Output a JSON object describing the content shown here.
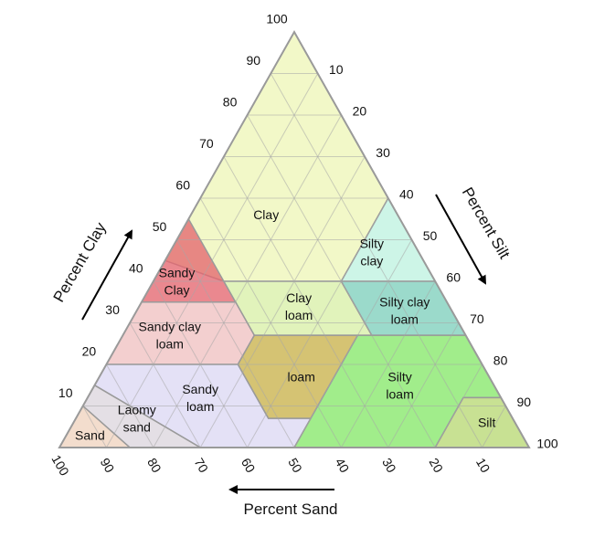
{
  "diagram": {
    "type": "soil-texture-triangle",
    "regions": [
      {
        "id": "clay",
        "label_lines": [
          "Clay"
        ],
        "color": "#eef6b8"
      },
      {
        "id": "silty-clay",
        "label_lines": [
          "Silty",
          "clay"
        ],
        "color": "#bff2e0"
      },
      {
        "id": "sandy-clay",
        "label_lines": [
          "Sandy",
          "Clay"
        ],
        "color": "#e4666f"
      },
      {
        "id": "clay-loam",
        "label_lines": [
          "Clay",
          "loam"
        ],
        "color": "#d9f0a8"
      },
      {
        "id": "silty-clay-loam",
        "label_lines": [
          "Silty clay",
          "loam"
        ],
        "color": "#7fcfbd"
      },
      {
        "id": "sandy-clay-loam",
        "label_lines": [
          "Sandy clay",
          "loam"
        ],
        "color": "#f0c2c2"
      },
      {
        "id": "loam",
        "label_lines": [
          "loam"
        ],
        "color": "#c9b24c"
      },
      {
        "id": "sandy-loam",
        "label_lines": [
          "Sandy",
          "loam"
        ],
        "color": "#ddd8f4"
      },
      {
        "id": "silty-loam",
        "label_lines": [
          "Silty",
          "loam"
        ],
        "color": "#86e86a"
      },
      {
        "id": "silt",
        "label_lines": [
          "Silt"
        ],
        "color": "#b8d874"
      },
      {
        "id": "loamy-sand",
        "label_lines": [
          "Laomy",
          "sand"
        ],
        "color": "#dcd6de"
      },
      {
        "id": "sand",
        "label_lines": [
          "Sand"
        ],
        "color": "#f0d4bf"
      }
    ],
    "axes": {
      "clay": {
        "title": "Percent Clay",
        "ticks": [
          "10",
          "20",
          "30",
          "40",
          "50",
          "60",
          "70",
          "80",
          "90",
          "100"
        ]
      },
      "silt": {
        "title": "Percent Silt",
        "ticks": [
          "10",
          "20",
          "30",
          "40",
          "50",
          "60",
          "70",
          "80",
          "90",
          "100"
        ]
      },
      "sand": {
        "title": "Percent Sand",
        "ticks": [
          "100",
          "90",
          "80",
          "70",
          "60",
          "50",
          "40",
          "30",
          "20",
          "10"
        ]
      }
    },
    "colors": {
      "border": "#9a9a9a",
      "grid": "#a8a8a8",
      "arrow": "#000000"
    }
  }
}
